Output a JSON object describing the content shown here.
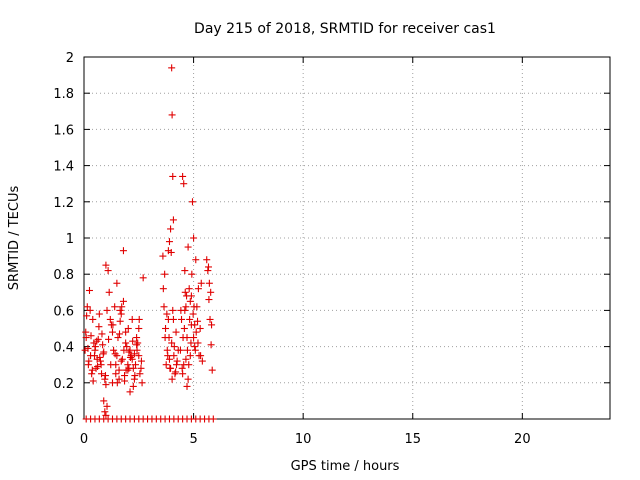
{
  "chart_data": {
    "type": "scatter",
    "title": "Day 215 of 2018, SRMTID for receiver cas1",
    "xlabel": "GPS time / hours",
    "ylabel": "SRMTID / TECUs",
    "xlim": [
      0,
      24
    ],
    "ylim": [
      0,
      2
    ],
    "xticks": [
      0,
      5,
      10,
      15,
      20
    ],
    "yticks": [
      0,
      0.2,
      0.4,
      0.6,
      0.8,
      1,
      1.2,
      1.4,
      1.6,
      1.8,
      2
    ],
    "xtick_labels": [
      "0",
      "5",
      "10",
      "15",
      "20"
    ],
    "ytick_labels": [
      "0",
      "0.2",
      "0.4",
      "0.6",
      "0.8",
      "1",
      "1.2",
      "1.4",
      "1.6",
      "1.8",
      "2"
    ],
    "grid": true,
    "marker": "+",
    "color": "#e00000",
    "series": [
      {
        "name": "SRMTID",
        "x": [
          0.05,
          0.1,
          0.15,
          0.2,
          0.25,
          0.3,
          0.35,
          0.4,
          0.45,
          0.5,
          0.55,
          0.6,
          0.65,
          0.7,
          0.75,
          0.8,
          0.85,
          0.9,
          0.95,
          1.0,
          0.08,
          0.18,
          0.28,
          0.38,
          0.48,
          0.58,
          0.68,
          0.78,
          0.88,
          0.98,
          0.12,
          0.22,
          0.32,
          0.42,
          0.52,
          0.62,
          0.72,
          0.82,
          1.1,
          1.2,
          1.3,
          1.4,
          1.5,
          1.6,
          1.7,
          1.8,
          1.9,
          2.0,
          2.1,
          2.2,
          2.3,
          2.4,
          2.5,
          2.6,
          2.7,
          1.15,
          1.25,
          1.35,
          1.45,
          1.55,
          1.65,
          1.75,
          1.85,
          1.95,
          2.05,
          2.15,
          2.25,
          2.35,
          2.45,
          2.55,
          2.65,
          1.3,
          1.5,
          1.7,
          1.9,
          2.1,
          2.3,
          2.5,
          1.6,
          1.8,
          2.0,
          2.2,
          2.4,
          1.45,
          1.65,
          1.85,
          2.05,
          2.25,
          1.0,
          1.05,
          1.12,
          1.22,
          1.32,
          1.42,
          1.52,
          1.62,
          1.72,
          1.82,
          1.92,
          2.02,
          2.12,
          2.22,
          2.32,
          2.42,
          2.52,
          2.62,
          3.6,
          3.65,
          3.7,
          3.75,
          3.8,
          3.85,
          3.9,
          3.95,
          4.0,
          4.05,
          4.1,
          4.15,
          4.2,
          4.25,
          4.3,
          3.62,
          3.72,
          3.82,
          3.92,
          4.02,
          4.12,
          4.22,
          3.68,
          3.78,
          3.88,
          3.98,
          4.08,
          4.18,
          4.0,
          4.02,
          4.05,
          4.08,
          3.95,
          3.9,
          3.85,
          4.4,
          4.45,
          4.5,
          4.55,
          4.6,
          4.65,
          4.7,
          4.75,
          4.8,
          4.85,
          4.9,
          4.95,
          5.0,
          5.05,
          5.1,
          5.15,
          5.2,
          5.25,
          5.3,
          5.35,
          5.4,
          4.42,
          4.52,
          4.62,
          4.72,
          4.82,
          4.92,
          5.02,
          5.12,
          5.22,
          5.32,
          4.48,
          4.58,
          4.68,
          4.78,
          4.88,
          4.98,
          5.08,
          5.18,
          4.5,
          4.55,
          4.7,
          4.75,
          4.85,
          5.0,
          5.05,
          4.9,
          4.6,
          4.65,
          5.6,
          5.65,
          5.7,
          5.75,
          5.8,
          5.85,
          5.72,
          5.78,
          5.82,
          5.68,
          0.9,
          0.95,
          1.0,
          1.05,
          0.1,
          0.3,
          0.5,
          0.7,
          0.9,
          1.1,
          1.3,
          1.5,
          1.7,
          1.9,
          2.1,
          2.3,
          2.5,
          2.7,
          2.9,
          3.1,
          3.3,
          3.5,
          3.7,
          3.9,
          4.1,
          4.3,
          4.5,
          4.7,
          4.9,
          5.1,
          5.3,
          5.5,
          5.7,
          5.9
        ],
        "y": [
          0.38,
          0.45,
          0.62,
          0.3,
          0.71,
          0.35,
          0.25,
          0.55,
          0.42,
          0.38,
          0.28,
          0.33,
          0.44,
          0.58,
          0.32,
          0.25,
          0.41,
          0.37,
          0.22,
          0.19,
          0.48,
          0.39,
          0.6,
          0.27,
          0.35,
          0.43,
          0.51,
          0.3,
          0.36,
          0.24,
          0.57,
          0.32,
          0.46,
          0.21,
          0.4,
          0.29,
          0.34,
          0.47,
          0.82,
          0.55,
          0.48,
          0.62,
          0.35,
          0.27,
          0.58,
          0.93,
          0.42,
          0.3,
          0.38,
          0.55,
          0.22,
          0.45,
          0.35,
          0.28,
          0.78,
          0.7,
          0.52,
          0.38,
          0.25,
          0.45,
          0.6,
          0.33,
          0.21,
          0.4,
          0.28,
          0.35,
          0.18,
          0.3,
          0.42,
          0.25,
          0.2,
          0.2,
          0.75,
          0.32,
          0.48,
          0.15,
          0.36,
          0.5,
          0.22,
          0.65,
          0.27,
          0.33,
          0.41,
          0.3,
          0.54,
          0.24,
          0.37,
          0.28,
          0.85,
          0.6,
          0.44,
          0.3,
          0.52,
          0.36,
          0.2,
          0.47,
          0.62,
          0.38,
          0.27,
          0.5,
          0.34,
          0.43,
          0.24,
          0.38,
          0.55,
          0.32,
          0.9,
          0.62,
          0.45,
          0.3,
          0.38,
          0.55,
          0.33,
          0.28,
          0.42,
          0.6,
          0.35,
          0.25,
          0.48,
          0.32,
          0.38,
          0.72,
          0.5,
          0.35,
          0.28,
          0.22,
          0.4,
          0.3,
          0.8,
          0.58,
          0.45,
          0.92,
          0.55,
          0.26,
          1.94,
          1.68,
          1.34,
          1.1,
          1.05,
          0.98,
          0.93,
          0.38,
          0.55,
          1.34,
          1.3,
          0.82,
          0.62,
          0.45,
          0.95,
          0.72,
          0.35,
          0.68,
          1.2,
          1.0,
          0.52,
          0.88,
          0.62,
          0.42,
          0.35,
          0.5,
          0.75,
          0.32,
          0.6,
          0.45,
          0.7,
          0.38,
          0.55,
          0.8,
          0.62,
          0.48,
          0.72,
          0.35,
          0.28,
          0.5,
          0.68,
          0.3,
          0.42,
          0.58,
          0.38,
          0.54,
          0.25,
          0.3,
          0.18,
          0.22,
          0.65,
          0.45,
          0.4,
          0.52,
          0.6,
          0.33,
          0.88,
          0.82,
          0.66,
          0.55,
          0.41,
          0.27,
          0.75,
          0.7,
          0.52,
          0.84,
          0.1,
          0.04,
          0.02,
          0.07,
          0,
          0,
          0,
          0,
          0,
          0,
          0,
          0,
          0,
          0,
          0,
          0,
          0,
          0,
          0,
          0,
          0,
          0,
          0,
          0,
          0,
          0,
          0,
          0,
          0,
          0,
          0,
          0,
          0,
          0
        ]
      }
    ]
  }
}
